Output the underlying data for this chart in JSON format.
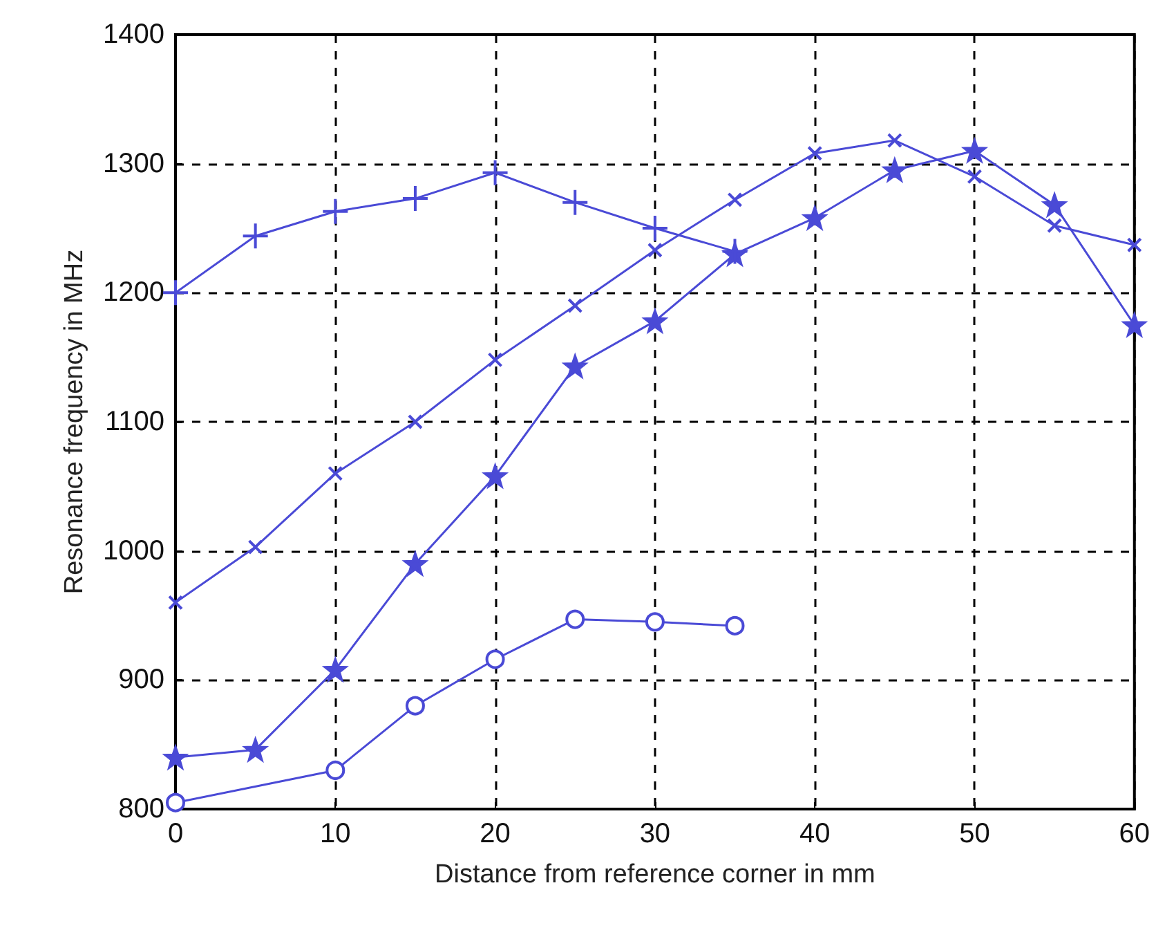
{
  "chart_data": {
    "type": "line",
    "xlabel": "Distance from reference corner in mm",
    "ylabel": "Resonance frequency in MHz",
    "xlim": [
      0,
      60
    ],
    "xticks": [
      0,
      10,
      20,
      30,
      40,
      50,
      60
    ],
    "ylim": [
      800,
      1400
    ],
    "yticks": [
      800,
      900,
      1000,
      1100,
      1200,
      1300,
      1400
    ],
    "grid": true,
    "line_style": "solid",
    "series": [
      {
        "color": "#4a4ad6",
        "marker": "cross",
        "x": [
          0,
          5,
          10,
          15,
          20,
          25,
          30,
          35
        ],
        "values": [
          1200,
          1244,
          1263,
          1273,
          1293,
          1270,
          1250,
          1232
        ]
      },
      {
        "color": "#4a4ad6",
        "marker": "x",
        "x": [
          0,
          5,
          10,
          15,
          20,
          25,
          30,
          35,
          40,
          45,
          50,
          55,
          60
        ],
        "values": [
          960,
          1003,
          1060,
          1100,
          1148,
          1190,
          1233,
          1272,
          1308,
          1318,
          1290,
          1252,
          1237
        ]
      },
      {
        "color": "#4a4ad6",
        "marker": "star",
        "x": [
          0,
          5,
          10,
          15,
          20,
          25,
          30,
          35,
          40,
          45,
          50,
          55,
          60
        ],
        "values": [
          840,
          846,
          908,
          990,
          1058,
          1143,
          1178,
          1230,
          1258,
          1295,
          1310,
          1268,
          1175
        ]
      },
      {
        "color": "#4a4ad6",
        "marker": "circle",
        "x": [
          0,
          10,
          15,
          20,
          25,
          30,
          35
        ],
        "values": [
          805,
          830,
          880,
          916,
          947,
          945,
          942
        ]
      }
    ]
  }
}
